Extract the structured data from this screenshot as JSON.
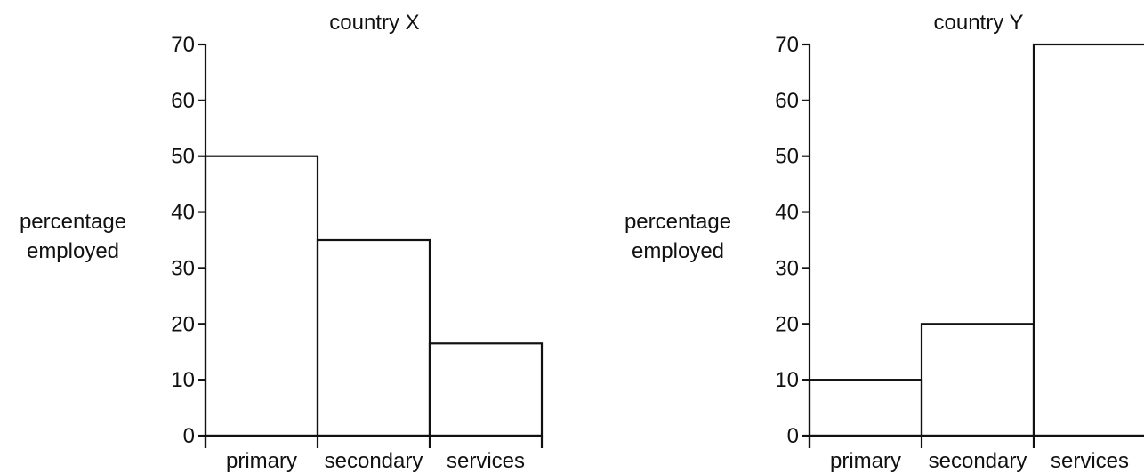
{
  "chart_data": [
    {
      "type": "bar",
      "title": "country X",
      "ylabel": [
        "percentage",
        "employed"
      ],
      "xlabel": "",
      "categories": [
        "primary",
        "secondary",
        "services"
      ],
      "values": [
        50,
        35,
        16.5
      ],
      "ylim": [
        0,
        70
      ],
      "yticks": [
        0,
        10,
        20,
        30,
        40,
        50,
        60,
        70
      ],
      "grid": false
    },
    {
      "type": "bar",
      "title": "country Y",
      "ylabel": [
        "percentage",
        "employed"
      ],
      "xlabel": "",
      "categories": [
        "primary",
        "secondary",
        "services"
      ],
      "values": [
        10,
        20,
        70
      ],
      "ylim": [
        0,
        70
      ],
      "yticks": [
        0,
        10,
        20,
        30,
        40,
        50,
        60,
        70
      ],
      "grid": false
    }
  ]
}
